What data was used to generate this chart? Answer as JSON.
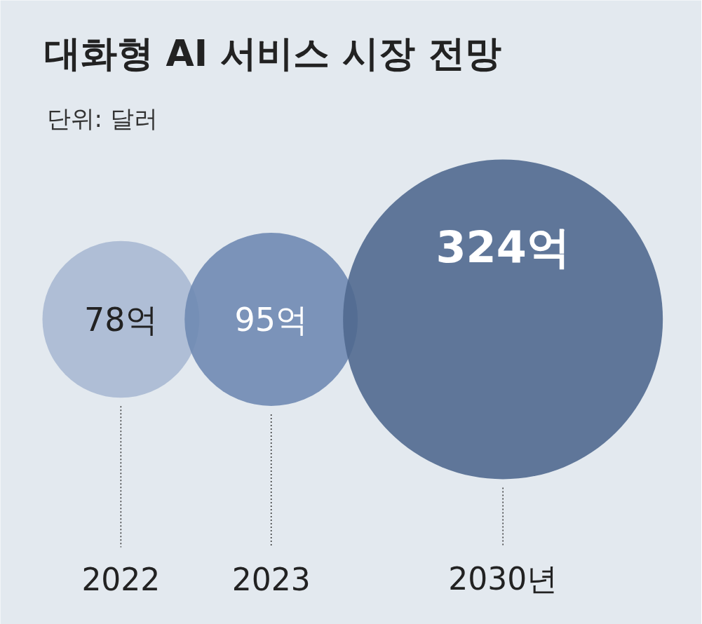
{
  "chart_data": {
    "type": "other",
    "title": "대화형 AI 서비스 시장 전망",
    "subtitle": "단위: 달러",
    "categories": [
      "2022",
      "2023",
      "2030년"
    ],
    "values": [
      78,
      95,
      324
    ],
    "value_labels": [
      "78억",
      "95억",
      "324억"
    ],
    "colors": [
      "#a9b9d3",
      "#6f8ab2",
      "#50698f"
    ]
  }
}
